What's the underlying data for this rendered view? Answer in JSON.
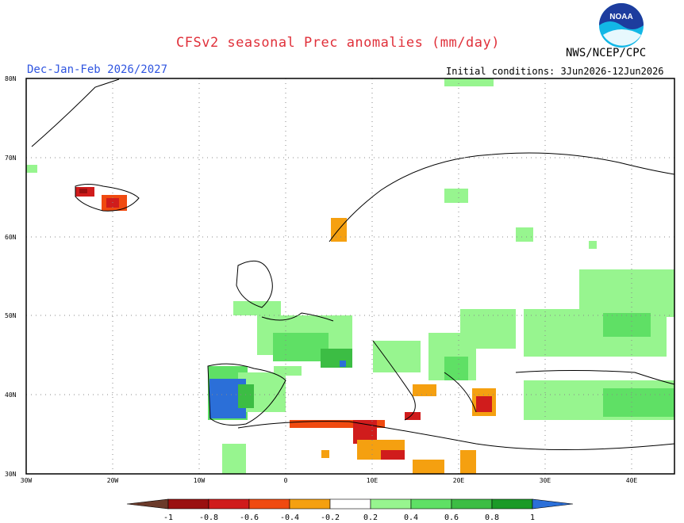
{
  "header": {
    "title": "CFSv2 seasonal Prec anomalies (mm/day)",
    "season": "Dec-Jan-Feb 2026/2027",
    "initial_conditions": "Initial conditions: 3Jun2026-12Jun2026",
    "agency": "NWS/NCEP/CPC",
    "logo_text": "NOAA"
  },
  "map": {
    "region": "Europe",
    "lon_range": [
      -30,
      45
    ],
    "lat_range": [
      30,
      80
    ],
    "lat_labels": [
      "80N",
      "70N",
      "60N",
      "50N",
      "40N",
      "30N"
    ],
    "lon_labels": [
      "30W",
      "20W",
      "10W",
      "0",
      "10E",
      "20E",
      "30E",
      "40E"
    ]
  },
  "legend": {
    "labels": [
      "-1",
      "-0.8",
      "-0.6",
      "-0.4",
      "-0.2",
      "0.2",
      "0.4",
      "0.6",
      "0.8",
      "1"
    ],
    "colors": {
      "below_min": "#6b3a2a",
      "neg_1": "#9a1010",
      "neg_08": "#d01c1c",
      "neg_06": "#f04a10",
      "neg_04": "#f5a010",
      "neutral": "#ffffff",
      "pos_02": "#97f58f",
      "pos_04": "#5fe065",
      "pos_06": "#3cbd44",
      "pos_08": "#1b9a27",
      "above_max": "#2b6fd8"
    }
  }
}
